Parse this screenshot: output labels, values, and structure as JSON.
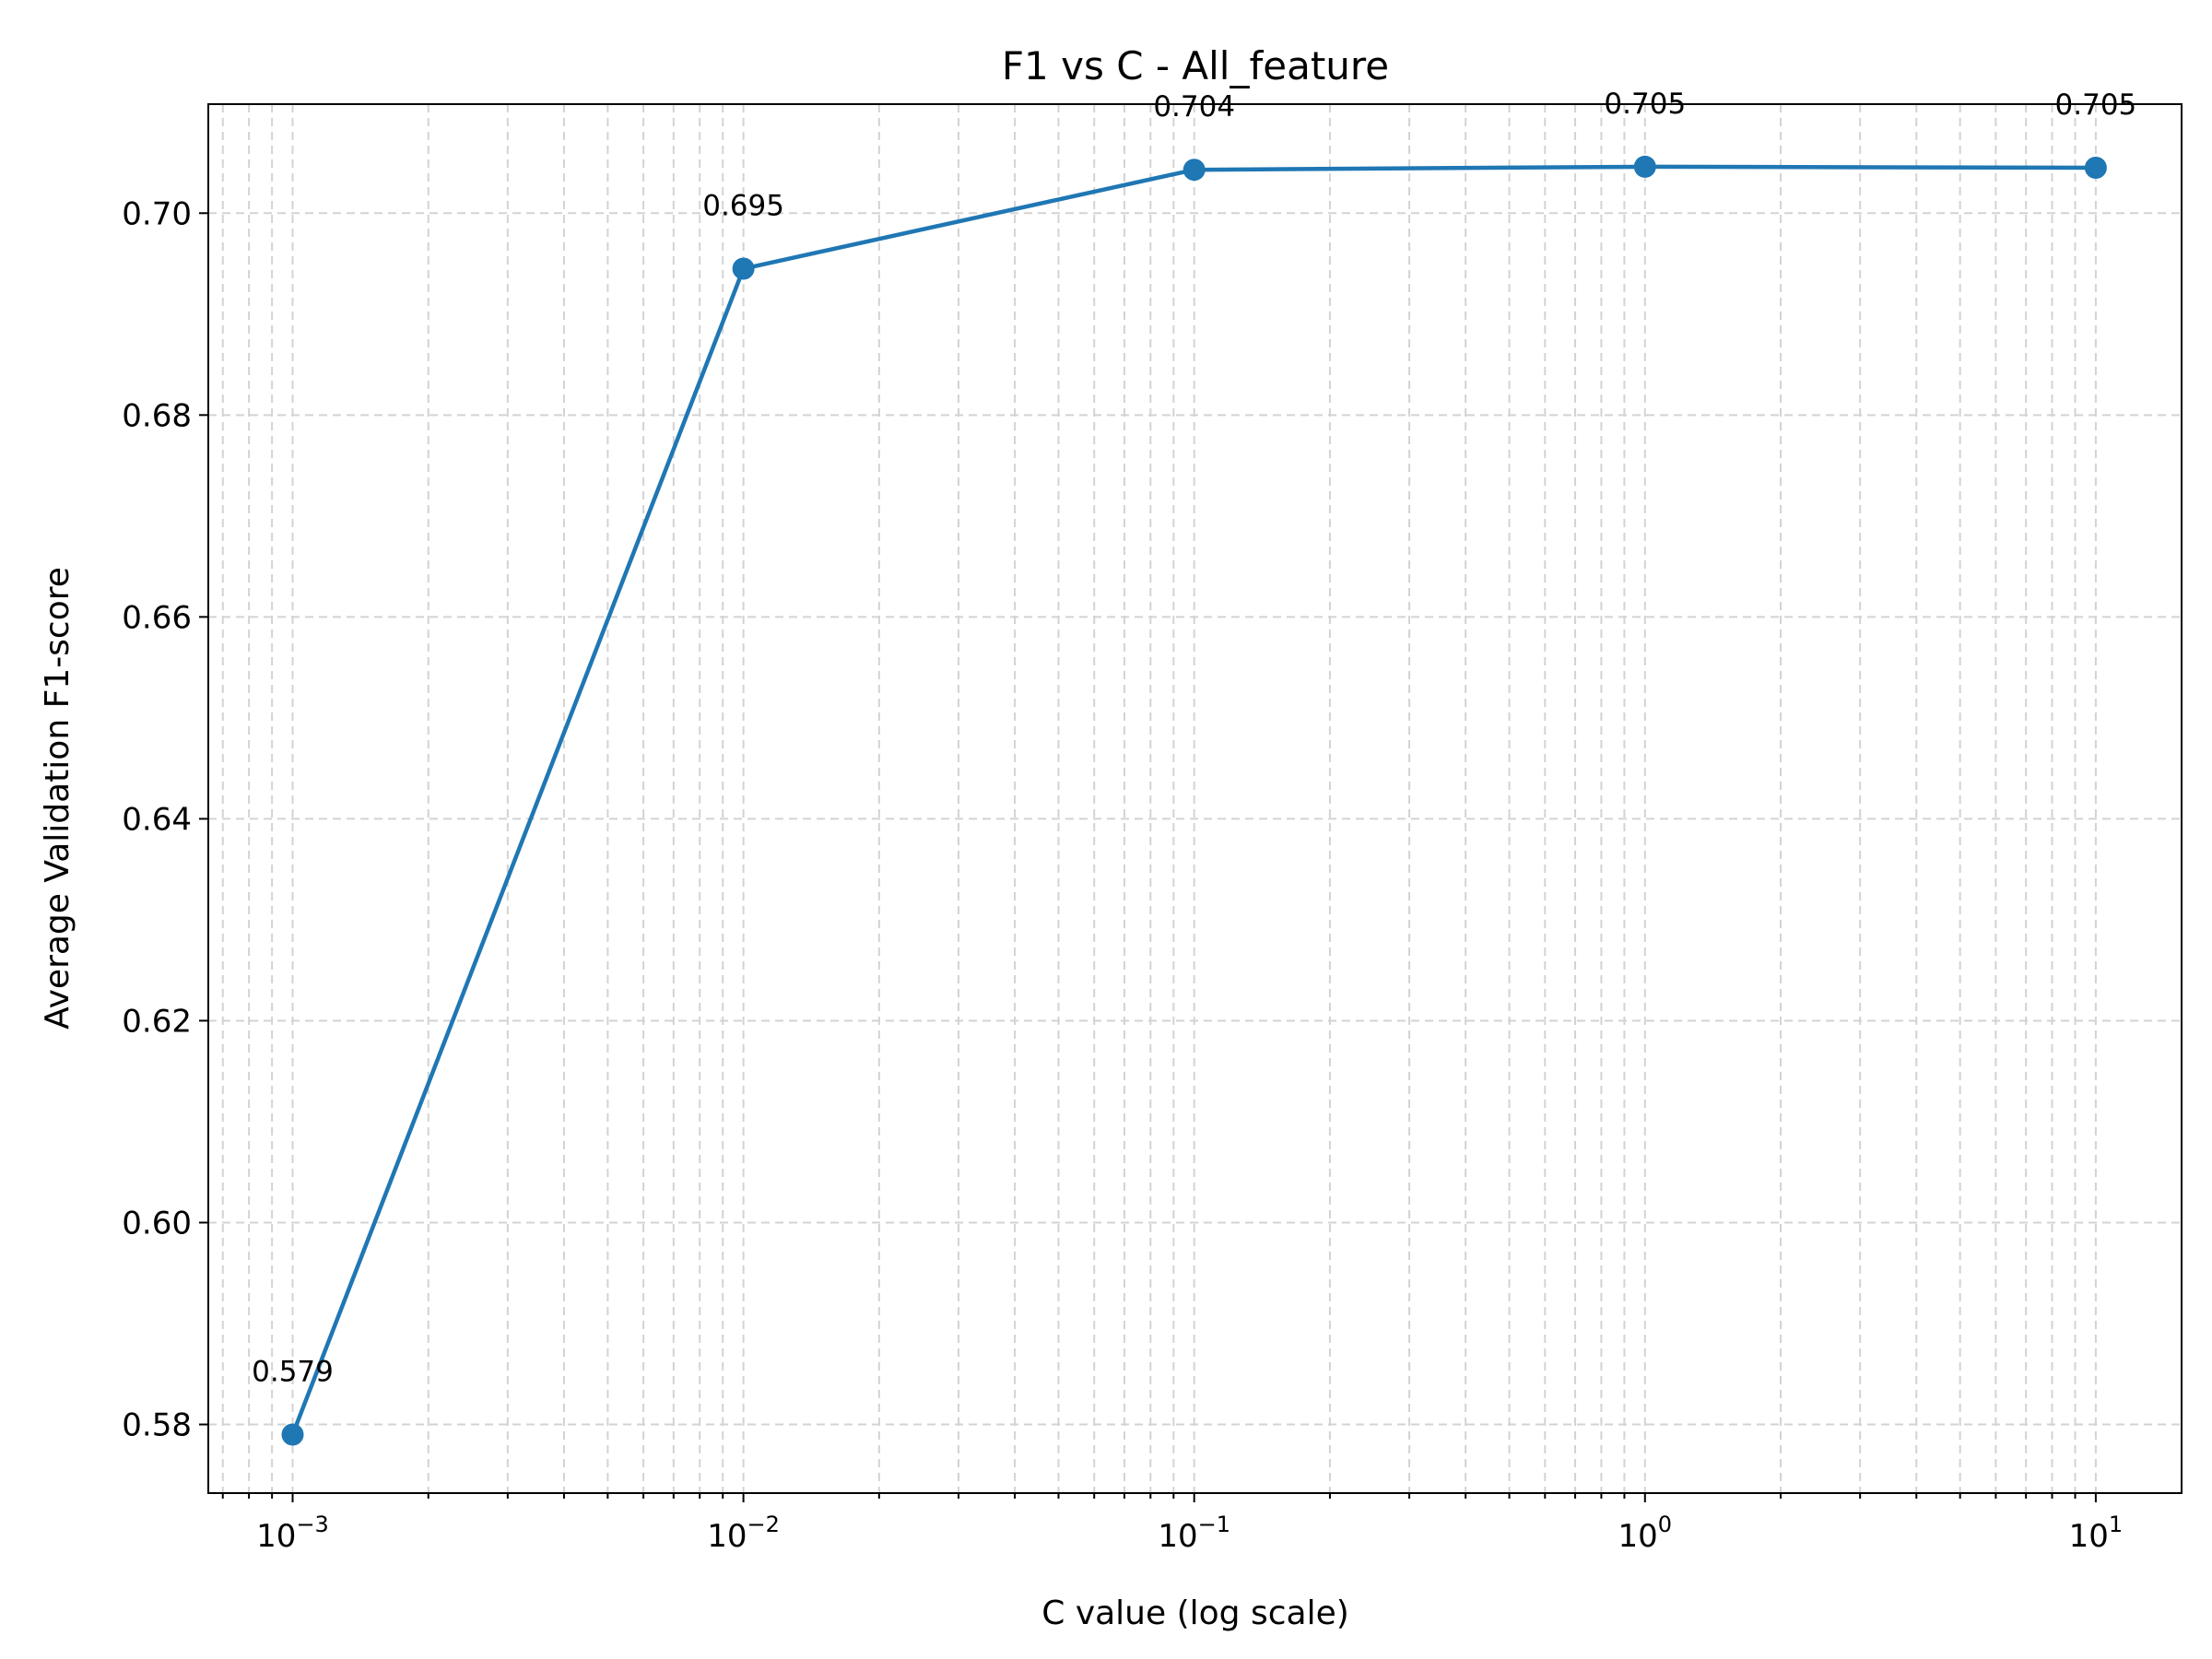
{
  "chart_data": {
    "type": "line",
    "title": "F1 vs C - All_feature",
    "xlabel": "C value (log scale)",
    "ylabel": "Average Validation F1-score",
    "xscale": "log",
    "xlim": [
      0.00065,
      15.5
    ],
    "ylim": [
      0.5732,
      0.7108
    ],
    "grid": true,
    "grid_style": "dashed",
    "x": [
      0.001,
      0.01,
      0.1,
      1,
      10
    ],
    "series": [
      {
        "values": [
          0.579,
          0.6945,
          0.7043,
          0.7046,
          0.7045
        ],
        "data_labels": [
          "0.579",
          "0.695",
          "0.704",
          "0.705",
          "0.705"
        ],
        "color": "#1f77b4",
        "marker": "circle"
      }
    ],
    "x_ticks": [
      {
        "value": 0.001,
        "base": "10",
        "exponent": "−3"
      },
      {
        "value": 0.01,
        "base": "10",
        "exponent": "−2"
      },
      {
        "value": 0.1,
        "base": "10",
        "exponent": "−1"
      },
      {
        "value": 1,
        "base": "10",
        "exponent": "0"
      },
      {
        "value": 10,
        "base": "10",
        "exponent": "1"
      }
    ],
    "y_ticks": [
      {
        "value": 0.58,
        "label": "0.58"
      },
      {
        "value": 0.6,
        "label": "0.60"
      },
      {
        "value": 0.62,
        "label": "0.62"
      },
      {
        "value": 0.64,
        "label": "0.64"
      },
      {
        "value": 0.66,
        "label": "0.66"
      },
      {
        "value": 0.68,
        "label": "0.68"
      },
      {
        "value": 0.7,
        "label": "0.70"
      }
    ]
  }
}
